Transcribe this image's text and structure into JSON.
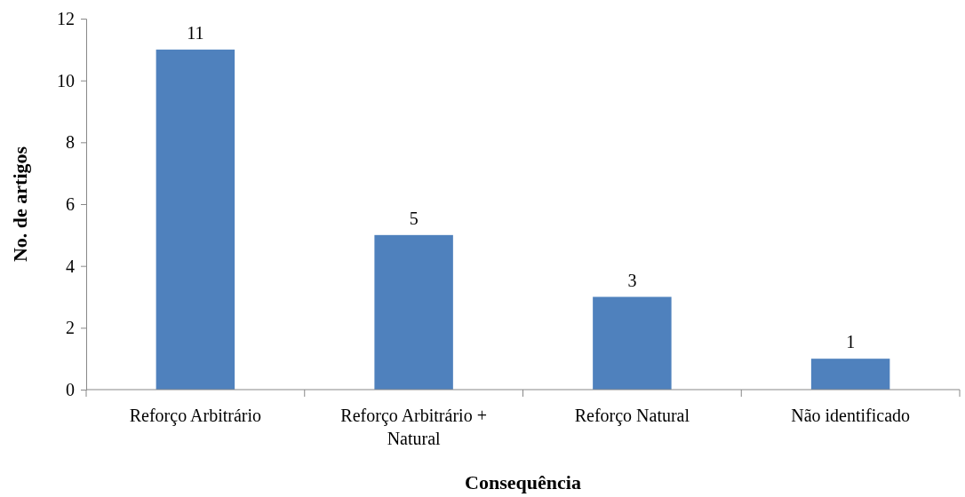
{
  "chart_data": {
    "type": "bar",
    "xlabel": "Consequência",
    "ylabel": "No. de artigos",
    "categories": [
      "Reforço Arbitrário",
      "Reforço Arbitrário + Natural",
      "Reforço Natural",
      "Não identificado"
    ],
    "values": [
      11,
      5,
      3,
      1
    ],
    "color": "#4f81bd",
    "ylim": [
      0,
      12
    ],
    "yticks": [
      0,
      2,
      4,
      6,
      8,
      10,
      12
    ],
    "data_labels": true
  }
}
